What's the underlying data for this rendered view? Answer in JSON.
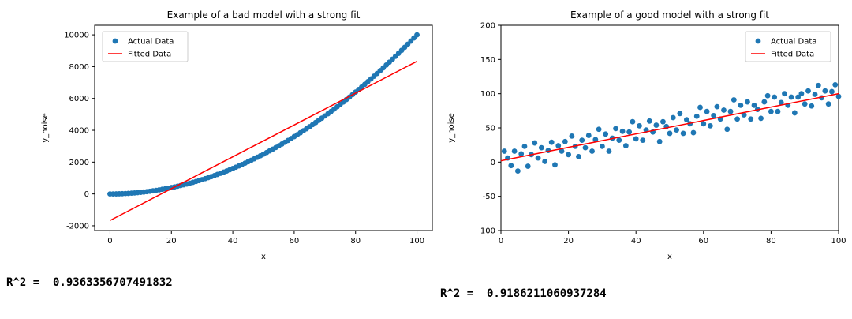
{
  "page": {
    "background": "#ffffff"
  },
  "chart_data": [
    {
      "type": "scatter",
      "title": "Example of a bad model with a strong fit",
      "xlabel": "x",
      "ylabel": "y_noise",
      "xlim": [
        -5,
        105
      ],
      "ylim": [
        -2300,
        10600
      ],
      "xticks": [
        0,
        20,
        40,
        60,
        80,
        100
      ],
      "yticks": [
        -2000,
        0,
        2000,
        4000,
        6000,
        8000,
        10000
      ],
      "grid": false,
      "legend": {
        "position": "top-left",
        "entries": [
          {
            "label": "Actual Data",
            "type": "marker",
            "color": "#1f77b4"
          },
          {
            "label": "Fitted Data",
            "type": "line",
            "color": "#ff0000"
          }
        ]
      },
      "series": [
        {
          "name": "Actual Data",
          "type": "scatter",
          "color": "#1f77b4",
          "x": [
            0,
            1,
            2,
            3,
            4,
            5,
            6,
            7,
            8,
            9,
            10,
            11,
            12,
            13,
            14,
            15,
            16,
            17,
            18,
            19,
            20,
            21,
            22,
            23,
            24,
            25,
            26,
            27,
            28,
            29,
            30,
            31,
            32,
            33,
            34,
            35,
            36,
            37,
            38,
            39,
            40,
            41,
            42,
            43,
            44,
            45,
            46,
            47,
            48,
            49,
            50,
            51,
            52,
            53,
            54,
            55,
            56,
            57,
            58,
            59,
            60,
            61,
            62,
            63,
            64,
            65,
            66,
            67,
            68,
            69,
            70,
            71,
            72,
            73,
            74,
            75,
            76,
            77,
            78,
            79,
            80,
            81,
            82,
            83,
            84,
            85,
            86,
            87,
            88,
            89,
            90,
            91,
            92,
            93,
            94,
            95,
            96,
            97,
            98,
            99,
            100
          ],
          "y": [
            0,
            1,
            4,
            9,
            16,
            25,
            36,
            49,
            64,
            81,
            100,
            121,
            144,
            169,
            196,
            225,
            256,
            289,
            324,
            361,
            400,
            441,
            484,
            529,
            576,
            625,
            676,
            729,
            784,
            841,
            900,
            961,
            1024,
            1089,
            1156,
            1225,
            1296,
            1369,
            1444,
            1521,
            1600,
            1681,
            1764,
            1849,
            1936,
            2025,
            2116,
            2209,
            2304,
            2401,
            2500,
            2601,
            2704,
            2809,
            2916,
            3025,
            3136,
            3249,
            3364,
            3481,
            3600,
            3721,
            3844,
            3969,
            4096,
            4225,
            4356,
            4489,
            4624,
            4761,
            4900,
            5041,
            5184,
            5329,
            5476,
            5625,
            5776,
            5929,
            6084,
            6241,
            6400,
            6561,
            6724,
            6889,
            7056,
            7225,
            7396,
            7569,
            7744,
            7921,
            8100,
            8281,
            8464,
            8649,
            8836,
            9025,
            9216,
            9409,
            9604,
            9801,
            10000
          ]
        },
        {
          "name": "Fitted Data",
          "type": "line",
          "color": "#ff0000",
          "x": [
            0,
            100
          ],
          "y": [
            -1666.7,
            8333.3
          ]
        }
      ],
      "r2_text": "R^2 =  0.9363356707491832"
    },
    {
      "type": "scatter",
      "title": "Example of a good model with a strong fit",
      "xlabel": "x",
      "ylabel": "y_noise",
      "xlim": [
        0,
        100
      ],
      "ylim": [
        -100,
        200
      ],
      "xticks": [
        0,
        20,
        40,
        60,
        80,
        100
      ],
      "yticks": [
        -100,
        -50,
        0,
        50,
        100,
        150,
        200
      ],
      "grid": false,
      "legend": {
        "position": "top-right",
        "entries": [
          {
            "label": "Actual Data",
            "type": "marker",
            "color": "#1f77b4"
          },
          {
            "label": "Fitted Data",
            "type": "line",
            "color": "#ff0000"
          }
        ]
      },
      "series": [
        {
          "name": "Actual Data",
          "type": "scatter",
          "color": "#1f77b4",
          "x": [
            1,
            2,
            3,
            4,
            5,
            6,
            7,
            8,
            9,
            10,
            11,
            12,
            13,
            14,
            15,
            16,
            17,
            18,
            19,
            20,
            21,
            22,
            23,
            24,
            25,
            26,
            27,
            28,
            29,
            30,
            31,
            32,
            33,
            34,
            35,
            36,
            37,
            38,
            39,
            40,
            41,
            42,
            43,
            44,
            45,
            46,
            47,
            48,
            49,
            50,
            51,
            52,
            53,
            54,
            55,
            56,
            57,
            58,
            59,
            60,
            61,
            62,
            63,
            64,
            65,
            66,
            67,
            68,
            69,
            70,
            71,
            72,
            73,
            74,
            75,
            76,
            77,
            78,
            79,
            80,
            81,
            82,
            83,
            84,
            85,
            86,
            87,
            88,
            89,
            90,
            91,
            92,
            93,
            94,
            95,
            96,
            97,
            98,
            99,
            100
          ],
          "y": [
            16,
            6,
            -5,
            16,
            -13,
            12,
            23,
            -6,
            11,
            28,
            6,
            21,
            1,
            17,
            29,
            -4,
            24,
            16,
            30,
            11,
            38,
            23,
            8,
            32,
            21,
            39,
            16,
            33,
            48,
            23,
            41,
            16,
            35,
            49,
            32,
            45,
            24,
            44,
            59,
            34,
            53,
            32,
            47,
            60,
            44,
            54,
            30,
            59,
            52,
            42,
            65,
            47,
            71,
            42,
            62,
            56,
            43,
            67,
            80,
            56,
            74,
            53,
            68,
            81,
            63,
            76,
            48,
            74,
            91,
            63,
            83,
            69,
            88,
            63,
            83,
            77,
            64,
            88,
            97,
            74,
            95,
            74,
            87,
            100,
            83,
            95,
            72,
            95,
            100,
            85,
            104,
            82,
            99,
            112,
            94,
            104,
            85,
            103,
            113,
            96
          ]
        },
        {
          "name": "Fitted Data",
          "type": "line",
          "color": "#ff0000",
          "x": [
            0,
            100
          ],
          "y": [
            2,
            100
          ]
        }
      ],
      "r2_text": "R^2 =  0.9186211060937284"
    }
  ]
}
